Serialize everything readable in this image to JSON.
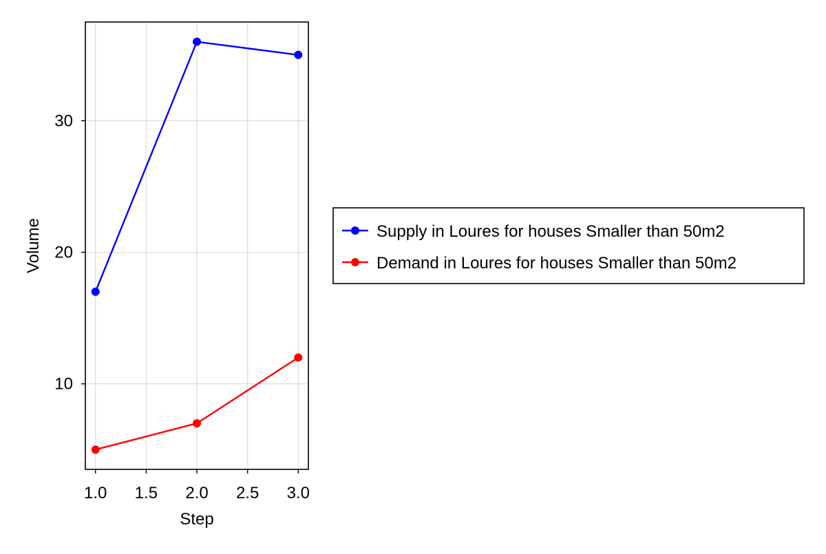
{
  "chart_data": {
    "type": "line",
    "title": "",
    "xlabel": "Step",
    "ylabel": "Volume",
    "xlim": [
      0.9,
      3.1
    ],
    "ylim": [
      3.5,
      37.5
    ],
    "x_ticks": [
      1.0,
      1.5,
      2.0,
      2.5,
      3.0
    ],
    "x_tick_labels": [
      "1.0",
      "1.5",
      "2.0",
      "2.5",
      "3.0"
    ],
    "y_ticks": [
      10,
      20,
      30
    ],
    "y_tick_labels": [
      "10",
      "20",
      "30"
    ],
    "grid": true,
    "legend_position": "right",
    "series": [
      {
        "name": "Supply in Loures for houses Smaller than 50m2",
        "color": "#0000ff",
        "x": [
          1.0,
          2.0,
          3.0
        ],
        "y": [
          17,
          36,
          35
        ]
      },
      {
        "name": "Demand in Loures for houses Smaller than 50m2",
        "color": "#ff0000",
        "x": [
          1.0,
          2.0,
          3.0
        ],
        "y": [
          5,
          7,
          12
        ]
      }
    ]
  }
}
